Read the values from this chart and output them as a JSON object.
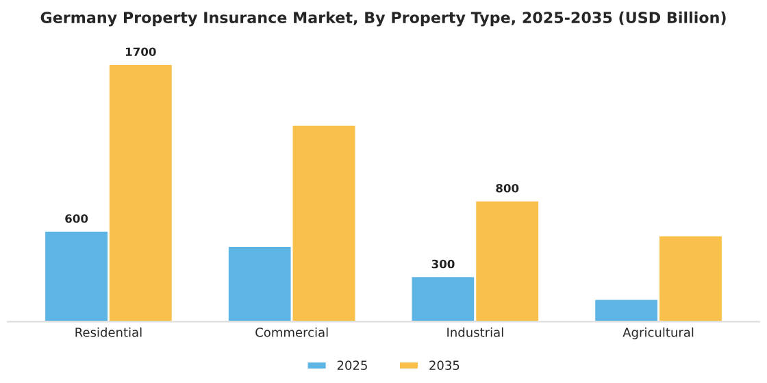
{
  "chart_data": {
    "type": "bar",
    "title": "Germany Property Insurance Market, By Property Type, 2025-2035 (USD Billion)",
    "categories": [
      "Residential",
      "Commercial",
      "Industrial",
      "Agricultural"
    ],
    "series": [
      {
        "name": "2025",
        "color": "#5db5e6",
        "values": [
          600,
          500,
          300,
          150
        ],
        "value_labels": [
          "600",
          null,
          "300",
          null
        ]
      },
      {
        "name": "2035",
        "color": "#f9c14b",
        "values": [
          1700,
          1300,
          800,
          570
        ],
        "value_labels": [
          "1700",
          null,
          "800",
          null
        ]
      }
    ],
    "legend": "bottom",
    "grid": false
  }
}
